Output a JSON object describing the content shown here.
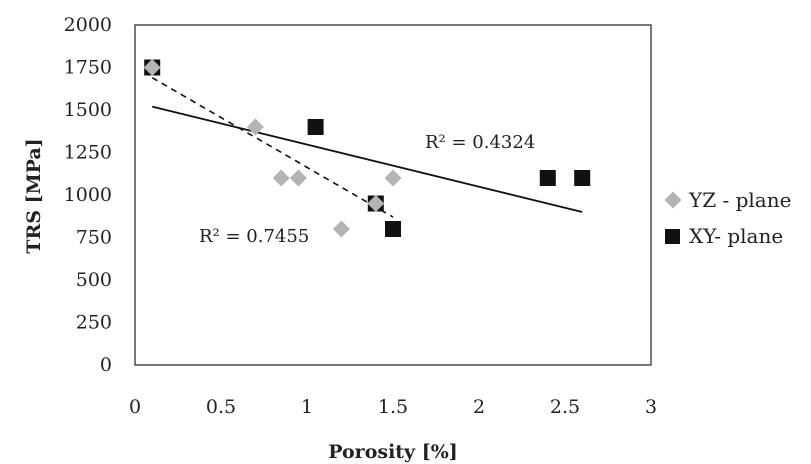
{
  "chart_data": {
    "type": "scatter",
    "xlabel": "Porosity [%]",
    "ylabel": "TRS [MPa]",
    "xlim": [
      0,
      3
    ],
    "ylim": [
      0,
      2000
    ],
    "xticks": [
      0,
      0.5,
      1,
      1.5,
      2,
      2.5,
      3
    ],
    "xtick_labels": [
      "0",
      "0.5",
      "1",
      "1.5",
      "2",
      "2.5",
      "3"
    ],
    "yticks": [
      0,
      250,
      500,
      750,
      1000,
      1250,
      1500,
      1750,
      2000
    ],
    "grid": false,
    "legend_position": "right",
    "series": [
      {
        "name": "YZ - plane",
        "marker": "diamond",
        "color": "#b4b4b4",
        "x": [
          0.1,
          0.7,
          0.85,
          0.95,
          1.2,
          1.4,
          1.5
        ],
        "y": [
          1750,
          1400,
          1100,
          1100,
          800,
          950,
          1100
        ],
        "trendline": {
          "x": [
            0.1,
            1.5
          ],
          "y": [
            1690,
            870
          ],
          "style": "dashed",
          "r2_label": "R² = 0.7455"
        }
      },
      {
        "name": "XY- plane",
        "marker": "square",
        "color": "#111111",
        "x": [
          0.1,
          1.05,
          1.4,
          1.5,
          2.4,
          2.6
        ],
        "y": [
          1750,
          1400,
          950,
          800,
          1100,
          1100
        ],
        "trendline": {
          "x": [
            0.1,
            2.6
          ],
          "y": [
            1520,
            900
          ],
          "style": "solid",
          "r2_label": "R² = 0.4324"
        }
      }
    ]
  }
}
